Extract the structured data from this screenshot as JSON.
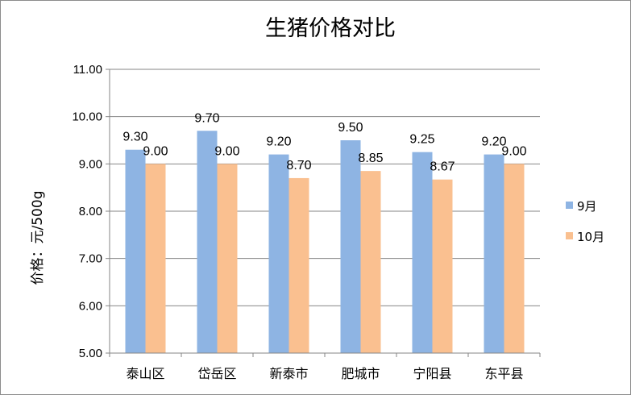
{
  "chart_data": {
    "type": "bar",
    "title": "生猪价格对比",
    "ylabel": "价格：元/500g",
    "xlabel": "",
    "categories": [
      "泰山区",
      "岱岳区",
      "新泰市",
      "肥城市",
      "宁阳县",
      "东平县"
    ],
    "series": [
      {
        "name": "9月",
        "color": "#8eb4e3",
        "values": [
          9.3,
          9.7,
          9.2,
          9.5,
          9.25,
          9.2
        ],
        "labels": [
          "9.30",
          "9.70",
          "9.20",
          "9.50",
          "9.25",
          "9.20"
        ]
      },
      {
        "name": "10月",
        "color": "#fac090",
        "values": [
          9.0,
          9.0,
          8.7,
          8.85,
          8.67,
          9.0
        ],
        "labels": [
          "9.00",
          "9.00",
          "8.70",
          "8.85",
          "8.67",
          "9.00"
        ]
      }
    ],
    "ylim": [
      5.0,
      11.0
    ],
    "yticks": [
      "5.00",
      "6.00",
      "7.00",
      "8.00",
      "9.00",
      "10.00",
      "11.00"
    ],
    "ytick_values": [
      5,
      6,
      7,
      8,
      9,
      10,
      11
    ],
    "grid": true,
    "legend_position": "right"
  }
}
